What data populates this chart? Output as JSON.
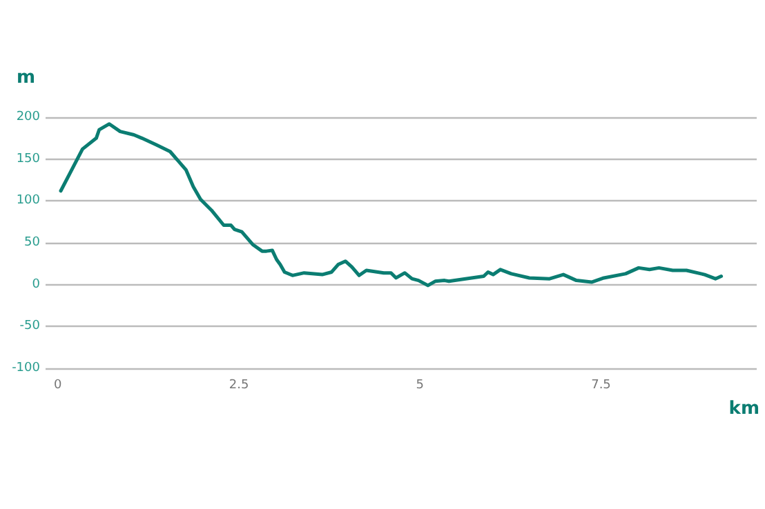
{
  "chart_data": {
    "type": "line",
    "xlabel": "km",
    "ylabel": "m",
    "xlim": [
      -0.17,
      9.65
    ],
    "xticks": [
      0,
      2.5,
      5,
      7.5
    ],
    "ylim": [
      -100,
      200
    ],
    "yticks": [
      -100,
      -50,
      0,
      50,
      100,
      150,
      200
    ],
    "grid": "y",
    "marker": "none",
    "line_style": "solid",
    "series": [
      {
        "color": "#0b7d72",
        "x": [
          0.04,
          0.34,
          0.53,
          0.57,
          0.71,
          0.86,
          1.05,
          1.16,
          1.36,
          1.55,
          1.72,
          1.77,
          1.87,
          1.97,
          2.12,
          2.29,
          2.39,
          2.44,
          2.54,
          2.69,
          2.82,
          2.88,
          2.96,
          3.02,
          3.07,
          3.13,
          3.24,
          3.4,
          3.65,
          3.78,
          3.87,
          3.97,
          4.06,
          4.16,
          4.26,
          4.5,
          4.6,
          4.67,
          4.79,
          4.89,
          4.98,
          5.11,
          5.21,
          5.34,
          5.4,
          5.63,
          5.88,
          5.94,
          6.01,
          6.11,
          6.26,
          6.51,
          6.79,
          6.98,
          7.16,
          7.37,
          7.54,
          7.84,
          8.02,
          8.17,
          8.3,
          8.49,
          8.68,
          8.93,
          9.08,
          9.16
        ],
        "values": [
          112,
          162,
          175,
          185,
          192,
          183,
          179,
          175,
          167,
          159,
          142,
          137,
          117,
          102,
          89,
          71,
          71,
          66,
          63,
          48,
          40,
          40,
          41,
          30,
          24,
          15,
          11,
          14,
          12,
          15,
          24,
          28,
          21,
          11,
          17,
          14,
          14,
          8,
          14,
          7,
          5,
          -1,
          4,
          5,
          4,
          7,
          10,
          15,
          12,
          18,
          13,
          8,
          7,
          12,
          5,
          3,
          8,
          13,
          20,
          18,
          20,
          17,
          17,
          12,
          7,
          10
        ]
      }
    ]
  }
}
